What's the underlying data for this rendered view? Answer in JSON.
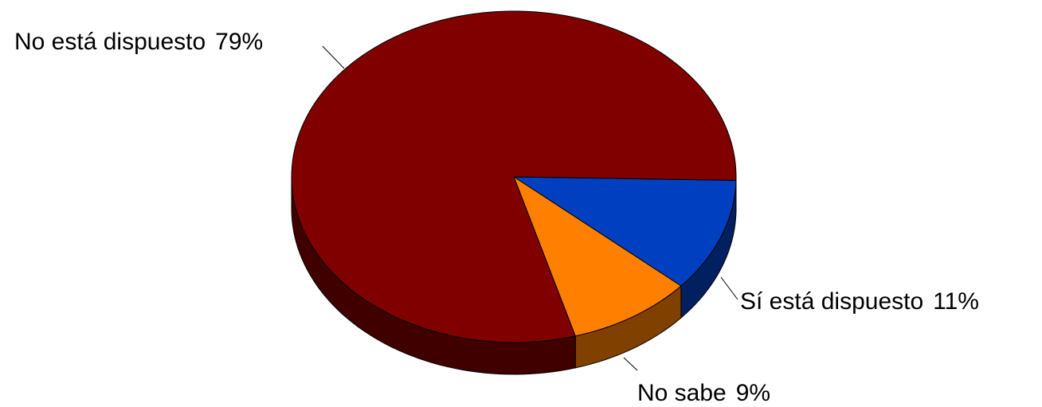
{
  "chart_data": {
    "type": "pie",
    "title": "",
    "slices": [
      {
        "label": "No está dispuesto",
        "value": 79,
        "value_label": "79%",
        "color": "#800000",
        "side_color": "#400000"
      },
      {
        "label": "Sí está dispuesto",
        "value": 11,
        "value_label": "11%",
        "color": "#0040C0",
        "side_color": "#002060"
      },
      {
        "label": "No sabe",
        "value": 9,
        "value_label": "9%",
        "color": "#FF8000",
        "side_color": "#804000"
      }
    ],
    "style": "3d-tilted",
    "legend": "none"
  }
}
